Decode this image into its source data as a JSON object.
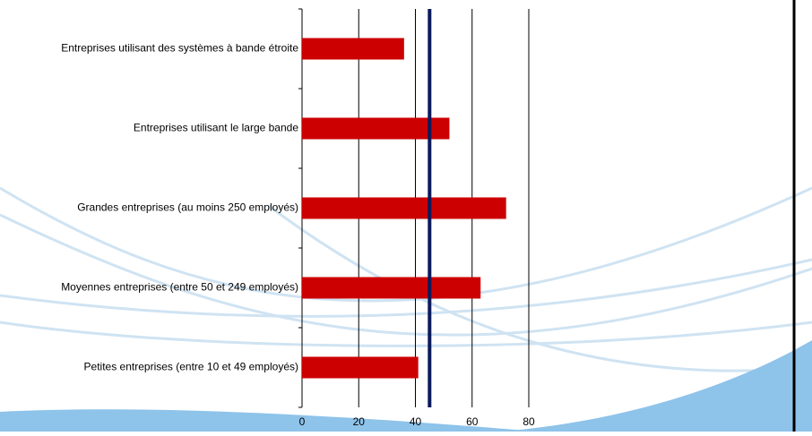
{
  "chart_data": {
    "type": "hbar",
    "categories": [
      "Entreprises utilisant des systèmes à bande étroite",
      "Entreprises utilisant le large bande",
      "Grandes entreprises (au moins 250 employés)",
      "Moyennes entreprises (entre 50 et 249 employés)",
      "Petites entreprises (entre 10 et 49 employés)"
    ],
    "values": [
      36,
      52,
      72,
      63,
      41
    ],
    "color": "#cc0000",
    "reference_line": 45,
    "reference_color": "#0a1a5c",
    "xlim": [
      0,
      80
    ],
    "xticks": [
      0,
      20,
      40,
      60,
      80
    ],
    "grid": true
  }
}
